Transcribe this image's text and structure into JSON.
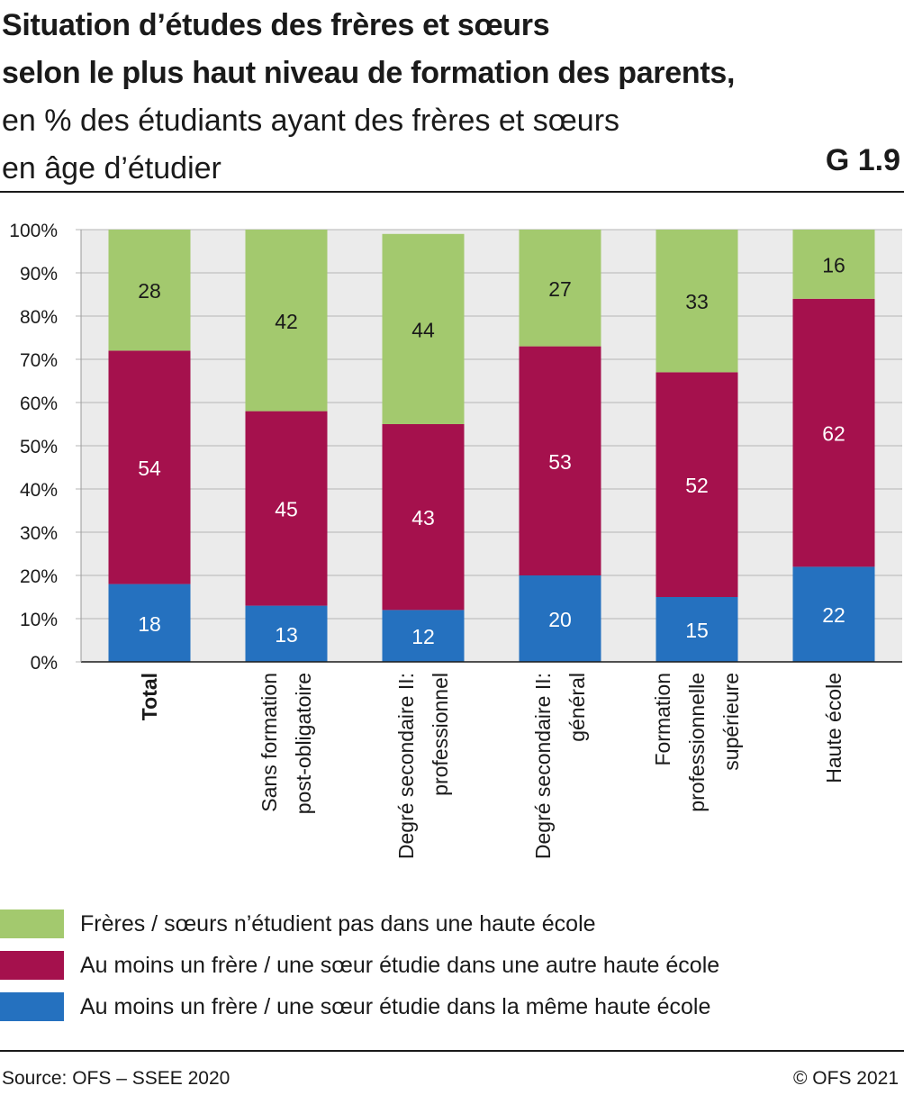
{
  "header": {
    "title_line1": "Situation d’études des frères et sœurs",
    "title_line2": "selon le plus haut niveau de formation des parents,",
    "subtitle_line1": "en % des étudiants ayant des frères et sœurs",
    "subtitle_line2": "en âge d’étudier",
    "chart_id": "G 1.9"
  },
  "chart_data": {
    "type": "bar",
    "stacked": true,
    "orientation": "vertical",
    "categories": [
      [
        "Total"
      ],
      [
        "Sans formation",
        "post-obligatoire"
      ],
      [
        "Degré secondaire II:",
        "professionnel"
      ],
      [
        "Degré secondaire II:",
        "général"
      ],
      [
        "Formation",
        "professionnelle",
        "supérieure"
      ],
      [
        "Haute école"
      ]
    ],
    "bold_categories": [
      0
    ],
    "series": [
      {
        "name": "Au moins un frère / une sœur étudie dans la même haute école",
        "color": "#2571bf",
        "label_color": "#ffffff",
        "values": [
          18,
          13,
          12,
          20,
          15,
          22
        ]
      },
      {
        "name": "Au moins un frère / une sœur étudie dans une autre haute école",
        "color": "#a5114d",
        "label_color": "#ffffff",
        "values": [
          54,
          45,
          43,
          53,
          52,
          62
        ]
      },
      {
        "name": "Frères / sœurs n’étudient pas dans une haute école",
        "color": "#a3c96e",
        "label_color": "#1a1a1a",
        "values": [
          28,
          42,
          44,
          27,
          33,
          16
        ]
      }
    ],
    "y_ticks": [
      "0%",
      "10%",
      "20%",
      "30%",
      "40%",
      "50%",
      "60%",
      "70%",
      "80%",
      "90%",
      "100%"
    ],
    "ylim": [
      0,
      100
    ],
    "grid": true,
    "background": "#ebebeb",
    "legend_position": "bottom"
  },
  "legend": [
    {
      "label": "Frères / sœurs n’étudient pas dans une haute école",
      "color": "#a3c96e"
    },
    {
      "label": "Au moins un frère / une sœur étudie dans une autre haute école",
      "color": "#a5114d"
    },
    {
      "label": "Au moins un frère / une sœur étudie dans la même haute école",
      "color": "#2571bf"
    }
  ],
  "footer": {
    "source": "Source: OFS – SSEE 2020",
    "copyright": "© OFS 2021"
  }
}
